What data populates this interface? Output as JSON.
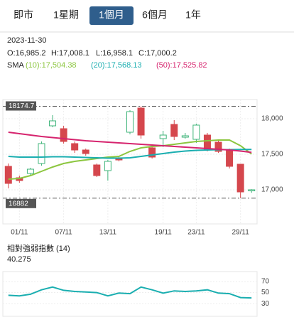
{
  "tabs": {
    "items": [
      "即市",
      "1星期",
      "1個月",
      "6個月",
      "1年"
    ],
    "selected": 2
  },
  "header": {
    "date": "2023-11-30",
    "ohlc": [
      "O:16,985.2",
      "H:17,008.1",
      "L:16,958.1",
      "C:17,000.2"
    ]
  },
  "chart_data": [
    {
      "type": "candlestick",
      "legend_title": "SMA",
      "categories": [
        null,
        "01/11",
        null,
        null,
        null,
        "07/11",
        null,
        null,
        null,
        "13/11",
        null,
        null,
        null,
        null,
        "19/11",
        null,
        null,
        "23/11",
        null,
        null,
        null,
        "29/11",
        null
      ],
      "open": [
        17330,
        17170,
        17230,
        17370,
        17900,
        17860,
        17650,
        17560,
        17350,
        17270,
        17450,
        17810,
        18150,
        17590,
        17720,
        17920,
        17740,
        17710,
        17770,
        17670,
        17550,
        17360,
        16985.2
      ],
      "high": [
        17370,
        17200,
        17310,
        17680,
        18050,
        17900,
        17680,
        17580,
        17370,
        17420,
        17480,
        18120,
        18174.7,
        17620,
        17830,
        17980,
        17800,
        17930,
        17800,
        17700,
        17580,
        17360,
        17008.1
      ],
      "low": [
        17020,
        17100,
        17200,
        17340,
        17880,
        17650,
        17520,
        17480,
        17180,
        17130,
        17400,
        17780,
        17720,
        17440,
        17600,
        17700,
        17720,
        17660,
        17540,
        17520,
        17300,
        16882,
        16958.1
      ],
      "close": [
        17090,
        17130,
        17290,
        17650,
        17970,
        17680,
        17560,
        17510,
        17200,
        17400,
        17420,
        18100,
        17770,
        17460,
        17770,
        17750,
        17760,
        17910,
        17570,
        17540,
        17330,
        16970,
        17000.2
      ],
      "up_color": "#3fb47a",
      "down_color": "#d5474d",
      "series": [
        {
          "name": "(10):17,504.38",
          "color": "#8cc63f",
          "values": [
            17150,
            17160,
            17200,
            17260,
            17320,
            17370,
            17400,
            17420,
            17440,
            17460,
            17470,
            17540,
            17590,
            17610,
            17620,
            17640,
            17660,
            17680,
            17690,
            17700,
            17700,
            17620,
            17504.38
          ]
        },
        {
          "name": "(20):17,568.13",
          "color": "#1aaeb0",
          "values": [
            17470,
            17460,
            17460,
            17460,
            17465,
            17465,
            17460,
            17455,
            17450,
            17445,
            17445,
            17450,
            17470,
            17490,
            17510,
            17530,
            17545,
            17555,
            17560,
            17565,
            17565,
            17568,
            17568.13
          ]
        },
        {
          "name": "(50):17,525.82",
          "color": "#d6246e",
          "values": [
            17810,
            17790,
            17770,
            17750,
            17735,
            17720,
            17705,
            17690,
            17680,
            17670,
            17660,
            17650,
            17640,
            17630,
            17620,
            17610,
            17600,
            17590,
            17580,
            17570,
            17560,
            17545,
            17525.82
          ]
        }
      ],
      "hlines": [
        18174.7,
        16882
      ],
      "ylim": [
        16520,
        18270
      ],
      "yticks": [
        {
          "value": 17000,
          "label": "17,000"
        },
        {
          "value": 17500,
          "label": "17,500"
        },
        {
          "value": 18000,
          "label": "18,000"
        }
      ]
    },
    {
      "type": "line",
      "title": "相對強弱指數 (14)",
      "series": [
        {
          "name": "RSI",
          "color": "#1aaeb0",
          "values": [
            45,
            44,
            47,
            55,
            60,
            54,
            52,
            51,
            50,
            44,
            49,
            48,
            60,
            55,
            49,
            53,
            52,
            53,
            55,
            49,
            48,
            41,
            40.275
          ]
        }
      ],
      "ylim": [
        7,
        88
      ],
      "yticks": [
        30,
        50,
        70
      ]
    }
  ]
}
